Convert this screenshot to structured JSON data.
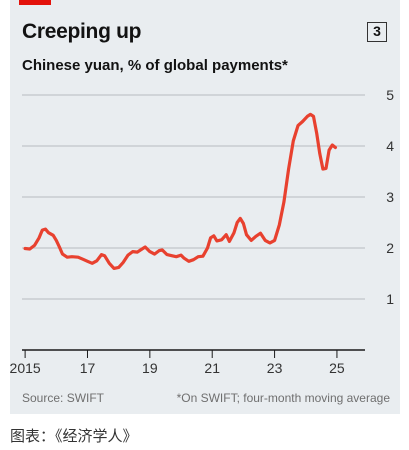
{
  "header": {
    "title": "Creeping up",
    "badge": "3",
    "subtitle": "Chinese yuan, % of global payments*"
  },
  "footer": {
    "source": "Source: SWIFT",
    "note": "*On SWIFT; four-month moving average"
  },
  "caption": "图表：《经济学人》",
  "colors": {
    "line": "#e8412f",
    "accent": "#e3120b",
    "grid": "#b7bcc0"
  },
  "chart_data": {
    "type": "line",
    "title": "Creeping up",
    "subtitle": "Chinese yuan, % of global payments*",
    "xlabel": "",
    "ylabel": "",
    "ylim": [
      0,
      5
    ],
    "xlim": [
      2014.9,
      2025.9
    ],
    "y_ticks": [
      1,
      2,
      3,
      4,
      5
    ],
    "x_ticks": [
      {
        "value": 2015,
        "label": "2015"
      },
      {
        "value": 2017,
        "label": "17"
      },
      {
        "value": 2019,
        "label": "19"
      },
      {
        "value": 2021,
        "label": "21"
      },
      {
        "value": 2023,
        "label": "23"
      },
      {
        "value": 2025,
        "label": "25"
      }
    ],
    "grid": true,
    "series": [
      {
        "points": [
          [
            2015.0,
            1.99
          ],
          [
            2015.15,
            1.98
          ],
          [
            2015.3,
            2.05
          ],
          [
            2015.45,
            2.2
          ],
          [
            2015.55,
            2.35
          ],
          [
            2015.65,
            2.37
          ],
          [
            2015.75,
            2.3
          ],
          [
            2015.9,
            2.25
          ],
          [
            2016.0,
            2.15
          ],
          [
            2016.1,
            2.02
          ],
          [
            2016.2,
            1.88
          ],
          [
            2016.35,
            1.82
          ],
          [
            2016.5,
            1.83
          ],
          [
            2016.7,
            1.82
          ],
          [
            2016.85,
            1.78
          ],
          [
            2017.0,
            1.74
          ],
          [
            2017.15,
            1.7
          ],
          [
            2017.3,
            1.75
          ],
          [
            2017.45,
            1.87
          ],
          [
            2017.55,
            1.85
          ],
          [
            2017.7,
            1.7
          ],
          [
            2017.85,
            1.6
          ],
          [
            2018.0,
            1.62
          ],
          [
            2018.15,
            1.72
          ],
          [
            2018.3,
            1.86
          ],
          [
            2018.45,
            1.93
          ],
          [
            2018.6,
            1.92
          ],
          [
            2018.75,
            1.98
          ],
          [
            2018.85,
            2.02
          ],
          [
            2019.0,
            1.93
          ],
          [
            2019.15,
            1.88
          ],
          [
            2019.3,
            1.95
          ],
          [
            2019.4,
            1.96
          ],
          [
            2019.55,
            1.87
          ],
          [
            2019.7,
            1.85
          ],
          [
            2019.85,
            1.83
          ],
          [
            2020.0,
            1.86
          ],
          [
            2020.1,
            1.8
          ],
          [
            2020.25,
            1.74
          ],
          [
            2020.4,
            1.77
          ],
          [
            2020.55,
            1.83
          ],
          [
            2020.7,
            1.84
          ],
          [
            2020.85,
            2.0
          ],
          [
            2020.95,
            2.2
          ],
          [
            2021.05,
            2.24
          ],
          [
            2021.15,
            2.14
          ],
          [
            2021.3,
            2.16
          ],
          [
            2021.45,
            2.26
          ],
          [
            2021.55,
            2.13
          ],
          [
            2021.7,
            2.3
          ],
          [
            2021.8,
            2.5
          ],
          [
            2021.9,
            2.58
          ],
          [
            2022.0,
            2.48
          ],
          [
            2022.1,
            2.26
          ],
          [
            2022.25,
            2.15
          ],
          [
            2022.4,
            2.23
          ],
          [
            2022.55,
            2.29
          ],
          [
            2022.7,
            2.15
          ],
          [
            2022.85,
            2.1
          ],
          [
            2023.0,
            2.15
          ],
          [
            2023.15,
            2.45
          ],
          [
            2023.3,
            2.9
          ],
          [
            2023.45,
            3.55
          ],
          [
            2023.6,
            4.1
          ],
          [
            2023.75,
            4.4
          ],
          [
            2023.9,
            4.48
          ],
          [
            2024.05,
            4.58
          ],
          [
            2024.15,
            4.62
          ],
          [
            2024.25,
            4.58
          ],
          [
            2024.35,
            4.25
          ],
          [
            2024.45,
            3.85
          ],
          [
            2024.55,
            3.55
          ],
          [
            2024.65,
            3.56
          ],
          [
            2024.75,
            3.92
          ],
          [
            2024.85,
            4.02
          ],
          [
            2024.95,
            3.97
          ]
        ]
      }
    ]
  }
}
